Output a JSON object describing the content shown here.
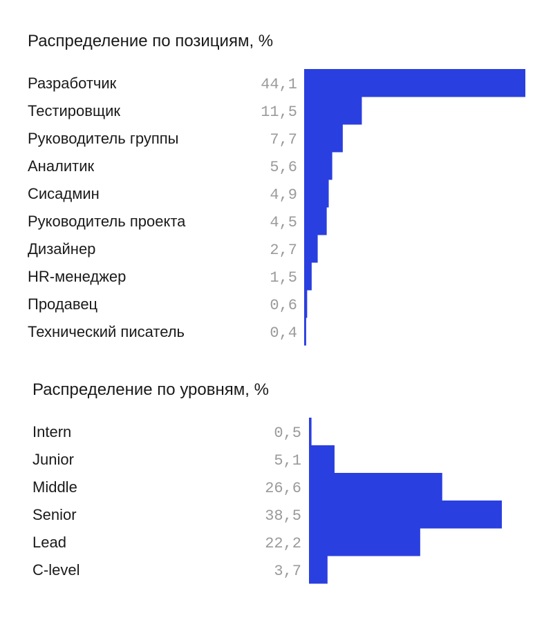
{
  "chart_data": [
    {
      "type": "bar",
      "title": "Распределение по позициям, %",
      "orientation": "horizontal",
      "categories": [
        "Разработчик",
        "Тестировщик",
        "Руководитель группы",
        "Аналитик",
        "Сисадмин",
        "Руководитель проекта",
        "Дизайнер",
        "HR-менеджер",
        "Продавец",
        "Технический писатель"
      ],
      "values": [
        44.1,
        11.5,
        7.7,
        5.6,
        4.9,
        4.5,
        2.7,
        1.5,
        0.6,
        0.4
      ],
      "value_labels": [
        "44,1",
        "11,5",
        "7,7",
        "5,6",
        "4,9",
        "4,5",
        "2,7",
        "1,5",
        "0,6",
        "0,4"
      ],
      "xlim": [
        0,
        44.1
      ],
      "bar_color": "#2a3fdf",
      "grid": false,
      "legend": "none"
    },
    {
      "type": "bar",
      "title": "Распределение по уровням, %",
      "orientation": "horizontal",
      "categories": [
        "Intern",
        "Junior",
        "Middle",
        "Senior",
        "Lead",
        "C-level"
      ],
      "values": [
        0.5,
        5.1,
        26.6,
        38.5,
        22.2,
        3.7
      ],
      "value_labels": [
        "0,5",
        "5,1",
        "26,6",
        "38,5",
        "22,2",
        "3,7"
      ],
      "xlim": [
        0,
        38.5
      ],
      "bar_color": "#2a3fdf",
      "grid": false,
      "legend": "none"
    }
  ],
  "colors": {
    "bar": "#2a3fdf",
    "category_text": "#1a1a1a",
    "value_text": "#9a9a9a"
  }
}
